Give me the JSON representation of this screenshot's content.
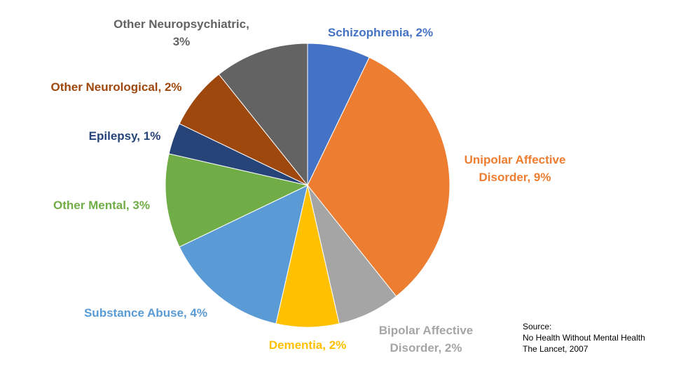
{
  "chart_data": {
    "type": "pie",
    "title": "",
    "slices": [
      {
        "label_lines": [
          "Schizophrenia, 2%"
        ],
        "value": 2,
        "color": "#4472C4"
      },
      {
        "label_lines": [
          "Unipolar Affective",
          "Disorder, 9%"
        ],
        "value": 9,
        "color": "#ED7D31"
      },
      {
        "label_lines": [
          "Bipolar Affective",
          "Disorder, 2%"
        ],
        "value": 2,
        "color": "#A5A5A5"
      },
      {
        "label_lines": [
          "Dementia, 2%"
        ],
        "value": 2,
        "color": "#FFC000"
      },
      {
        "label_lines": [
          "Substance Abuse, 4%"
        ],
        "value": 4,
        "color": "#5B9BD5"
      },
      {
        "label_lines": [
          "Other Mental, 3%"
        ],
        "value": 3,
        "color": "#70AD47"
      },
      {
        "label_lines": [
          "Epilepsy, 1%"
        ],
        "value": 1,
        "color": "#264478"
      },
      {
        "label_lines": [
          "Other Neurological, 2%"
        ],
        "value": 2,
        "color": "#9E480E"
      },
      {
        "label_lines": [
          "Other Neuropsychiatric,",
          "3%"
        ],
        "value": 3,
        "color": "#636363"
      }
    ],
    "legend": "none"
  },
  "source": {
    "heading": "Source:",
    "line1": "No Health Without Mental Health",
    "line2": "The Lancet, 2007"
  }
}
